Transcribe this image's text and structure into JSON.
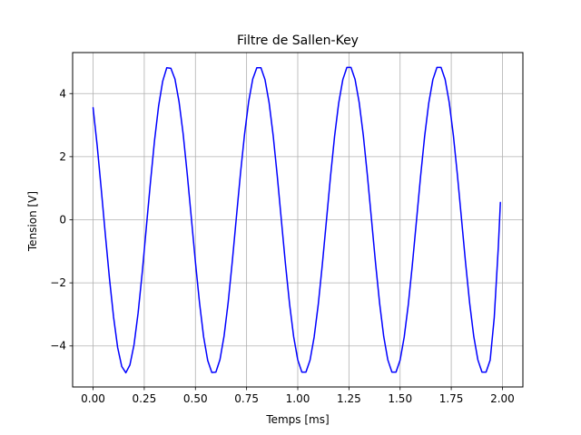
{
  "chart_data": {
    "type": "line",
    "title": "Filtre de Sallen-Key",
    "xlabel": "Temps [ms]",
    "ylabel": "Tension [V]",
    "xlim": [
      -0.1,
      2.1
    ],
    "ylim": [
      -5.3,
      5.3
    ],
    "grid": true,
    "xticks": [
      0.0,
      0.25,
      0.5,
      0.75,
      1.0,
      1.25,
      1.5,
      1.75,
      2.0
    ],
    "xtick_labels": [
      "0.00",
      "0.25",
      "0.50",
      "0.75",
      "1.00",
      "1.25",
      "1.50",
      "1.75",
      "2.00"
    ],
    "yticks": [
      -4,
      -2,
      0,
      2,
      4
    ],
    "ytick_labels": [
      "−4",
      "−2",
      "0",
      "2",
      "4"
    ],
    "series": [
      {
        "color": "#0000ff",
        "x": [
          0.0,
          0.02,
          0.04,
          0.06,
          0.08,
          0.1,
          0.12,
          0.14,
          0.16,
          0.18,
          0.2,
          0.22,
          0.24,
          0.26,
          0.28,
          0.3,
          0.32,
          0.34,
          0.36,
          0.38,
          0.4,
          0.42,
          0.44,
          0.46,
          0.48,
          0.5,
          0.52,
          0.54,
          0.56,
          0.58,
          0.6,
          0.62,
          0.64,
          0.66,
          0.68,
          0.7,
          0.72,
          0.74,
          0.76,
          0.78,
          0.8,
          0.82,
          0.84,
          0.86,
          0.88,
          0.9,
          0.92,
          0.94,
          0.96,
          0.98,
          1.0,
          1.02,
          1.04,
          1.06,
          1.08,
          1.1,
          1.12,
          1.14,
          1.16,
          1.18,
          1.2,
          1.22,
          1.24,
          1.26,
          1.28,
          1.3,
          1.32,
          1.34,
          1.36,
          1.38,
          1.4,
          1.42,
          1.44,
          1.46,
          1.48,
          1.5,
          1.52,
          1.54,
          1.56,
          1.58,
          1.6,
          1.62,
          1.64,
          1.66,
          1.68,
          1.7,
          1.72,
          1.74,
          1.76,
          1.78,
          1.8,
          1.82,
          1.84,
          1.86,
          1.88,
          1.9,
          1.92,
          1.94,
          1.96,
          1.98,
          1.99
        ],
        "y": [
          3.55,
          2.35,
          0.96,
          -0.48,
          -1.86,
          -3.08,
          -4.05,
          -4.65,
          -4.85,
          -4.6,
          -3.96,
          -2.95,
          -1.68,
          -0.25,
          1.17,
          2.5,
          3.6,
          4.39,
          4.82,
          4.8,
          4.46,
          3.74,
          2.72,
          1.45,
          0.06,
          -1.34,
          -2.63,
          -3.71,
          -4.46,
          -4.84,
          -4.83,
          -4.43,
          -3.68,
          -2.62,
          -1.33,
          0.07,
          1.46,
          2.71,
          3.74,
          4.46,
          4.82,
          4.82,
          4.44,
          3.71,
          2.66,
          1.38,
          -0.02,
          -1.41,
          -2.67,
          -3.71,
          -4.44,
          -4.83,
          -4.83,
          -4.45,
          -3.72,
          -2.69,
          -1.42,
          -0.03,
          1.37,
          2.65,
          3.7,
          4.44,
          4.83,
          4.83,
          4.45,
          3.72,
          2.69,
          1.42,
          0.03,
          -1.37,
          -2.65,
          -3.7,
          -4.44,
          -4.83,
          -4.83,
          -4.45,
          -3.72,
          -2.69,
          -1.42,
          -0.03,
          1.37,
          2.65,
          3.7,
          4.44,
          4.83,
          4.83,
          4.45,
          3.72,
          2.69,
          1.42,
          0.03,
          -1.37,
          -2.65,
          -3.7,
          -4.44,
          -4.83,
          -4.83,
          -4.45,
          -3.1,
          -0.85,
          0.55
        ]
      }
    ]
  }
}
